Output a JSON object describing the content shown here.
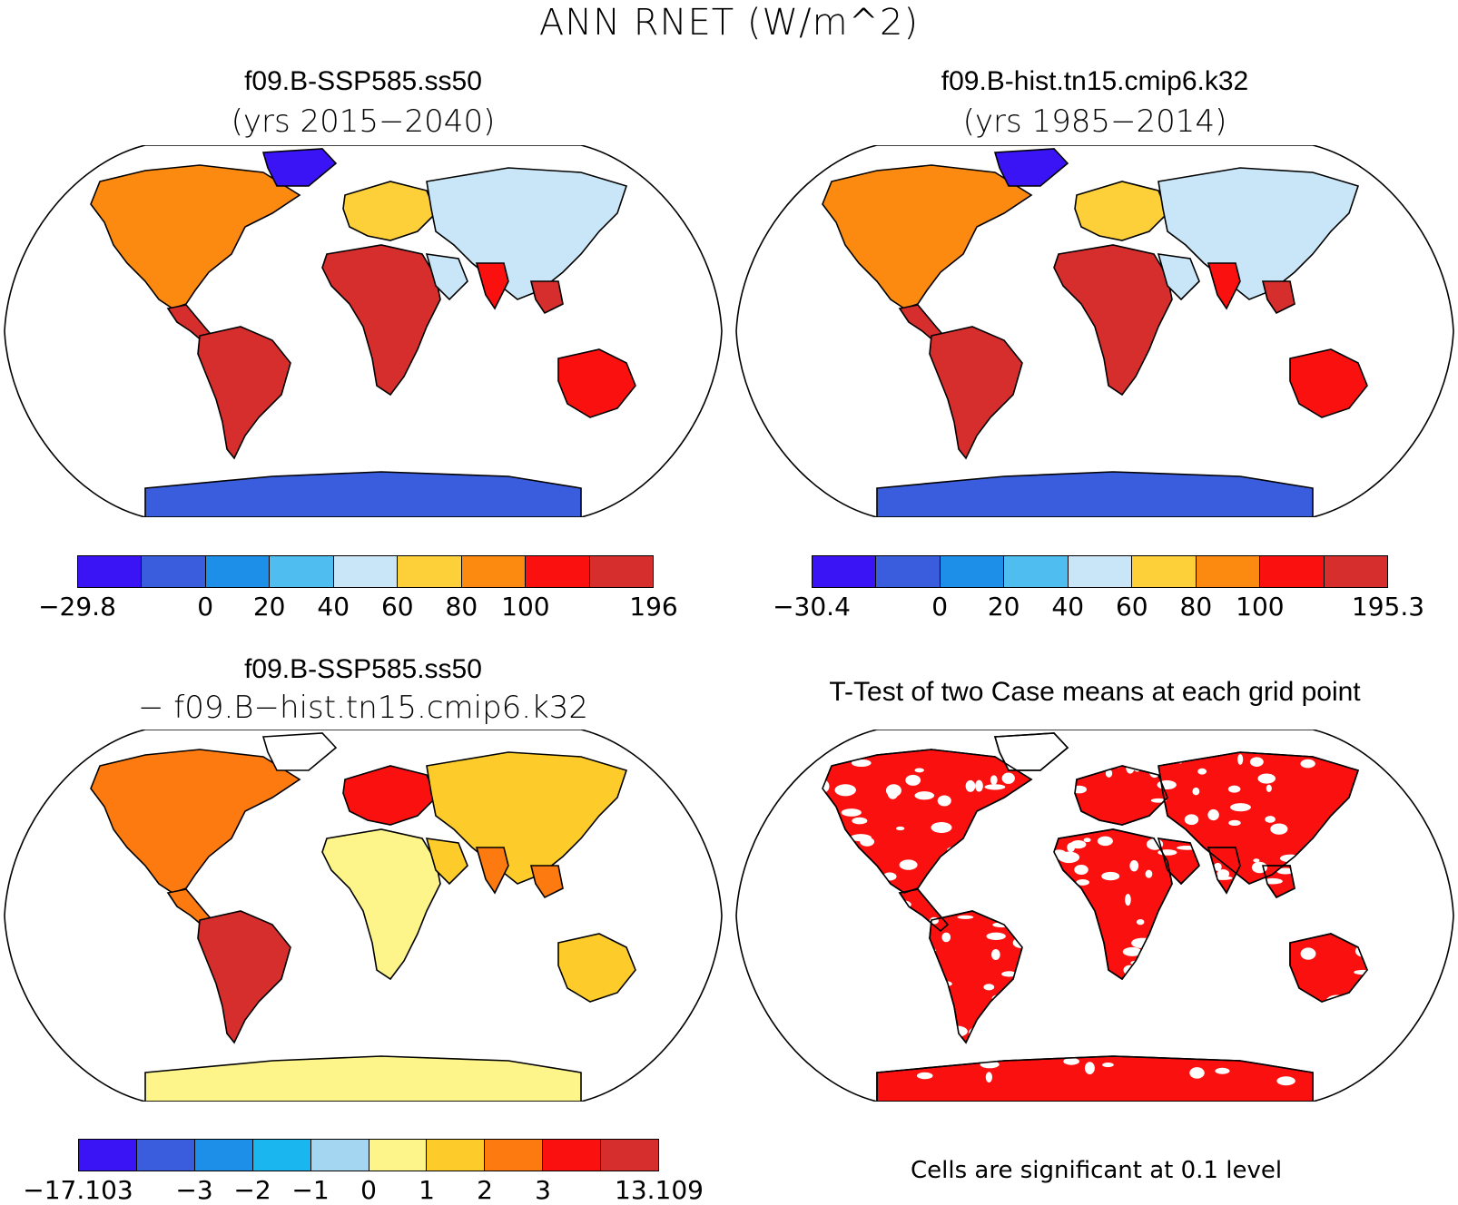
{
  "title": "ANN RNET (W/m^2)",
  "panels": {
    "top_left": {
      "title": "f09.B-SSP585.ss50",
      "subtitle": "(yrs 2015−2040)"
    },
    "top_right": {
      "title": "f09.B-hist.tn15.cmip6.k32",
      "subtitle": "(yrs 1985−2014)"
    },
    "bottom_left": {
      "title": "f09.B-SSP585.ss50",
      "subtitle": "− f09.B−hist.tn15.cmip6.k32"
    },
    "bottom_right": {
      "title": "T-Test of two Case means at each grid point"
    }
  },
  "colorbars": {
    "top_left": {
      "colors": [
        "#3b14f5",
        "#3a5ddd",
        "#1d8fe8",
        "#4fbdf0",
        "#c8e6f7",
        "#fdd03a",
        "#fd8a10",
        "#fb1010",
        "#d62d2d"
      ],
      "labels": [
        "−29.8",
        "0",
        "20",
        "40",
        "60",
        "80",
        "100",
        "196"
      ]
    },
    "top_right": {
      "colors": [
        "#3b14f5",
        "#3a5ddd",
        "#1d8fe8",
        "#4fbdf0",
        "#c8e6f7",
        "#fdd03a",
        "#fd8a10",
        "#fb1010",
        "#d62d2d"
      ],
      "labels": [
        "−30.4",
        "0",
        "20",
        "40",
        "60",
        "80",
        "100",
        "195.3"
      ]
    },
    "bottom_left": {
      "colors": [
        "#3b14f5",
        "#3a5ddd",
        "#1d8fe8",
        "#1ab6f0",
        "#a4d6f2",
        "#fdf48a",
        "#fdcc2a",
        "#fd7a10",
        "#fb1010",
        "#d62d2d"
      ],
      "labels": [
        "−17.103",
        "−3",
        "−2",
        "−1",
        "0",
        "1",
        "2",
        "3",
        "13.109"
      ]
    }
  },
  "significance_note": "Cells are significant at 0.1 level"
}
